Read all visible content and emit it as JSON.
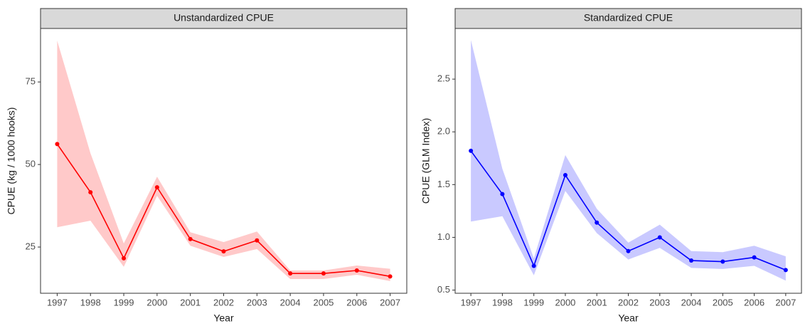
{
  "chart_data": [
    {
      "type": "line",
      "title": "Unstandardized CPUE",
      "xlabel": "Year",
      "ylabel": "CPUE (kg / 1000 hooks)",
      "categories": [
        "1997",
        "1998",
        "1999",
        "2000",
        "2001",
        "2002",
        "2003",
        "2004",
        "2005",
        "2006",
        "2007"
      ],
      "values": [
        56.2,
        41.6,
        21.6,
        43.1,
        27.4,
        23.7,
        27.0,
        17.0,
        17.0,
        17.9,
        16.1
      ],
      "lower": [
        31.0,
        33.0,
        19.0,
        40.5,
        25.4,
        22.0,
        24.4,
        15.3,
        15.3,
        16.6,
        14.7
      ],
      "upper": [
        87.5,
        53.4,
        26.1,
        46.3,
        29.5,
        26.5,
        29.7,
        17.9,
        17.9,
        19.4,
        18.4
      ],
      "color": "#ff0000",
      "band_color": "#ffc9c9",
      "ylim": [
        11.0,
        91.2
      ],
      "yticks": [
        25,
        50,
        75
      ]
    },
    {
      "type": "line",
      "title": "Standardized CPUE",
      "xlabel": "Year",
      "ylabel": "CPUE (GLM Index)",
      "categories": [
        "1997",
        "1998",
        "1999",
        "2000",
        "2001",
        "2002",
        "2003",
        "2004",
        "2005",
        "2006",
        "2007"
      ],
      "values": [
        1.82,
        1.41,
        0.73,
        1.59,
        1.14,
        0.87,
        1.0,
        0.78,
        0.77,
        0.81,
        0.69
      ],
      "lower": [
        1.15,
        1.2,
        0.64,
        1.44,
        1.04,
        0.79,
        0.9,
        0.71,
        0.7,
        0.73,
        0.59
      ],
      "upper": [
        2.87,
        1.65,
        0.8,
        1.78,
        1.27,
        0.95,
        1.12,
        0.87,
        0.86,
        0.92,
        0.82
      ],
      "color": "#0000ff",
      "band_color": "#c9c9ff",
      "ylim": [
        0.47,
        2.98
      ],
      "yticks": [
        0.5,
        {
          "value": 1,
          "label": "1.0"
        },
        1.5,
        {
          "value": 2,
          "label": "2.0"
        },
        2.5
      ]
    }
  ]
}
